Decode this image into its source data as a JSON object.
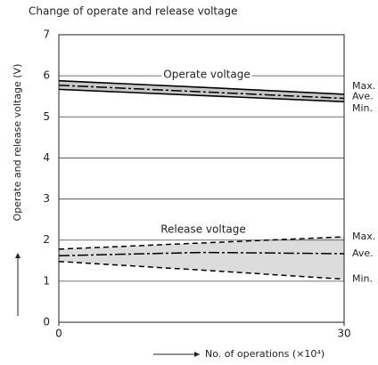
{
  "chart_data": {
    "type": "line",
    "title": "Change of operate and release voltage",
    "xlabel": "No. of operations (×10⁴)",
    "ylabel": "Operate and release voltage (V)",
    "annotations": [
      "Operate voltage",
      "Release voltage"
    ],
    "x": [
      0,
      15,
      30
    ],
    "series": [
      {
        "name": "Max.",
        "color": "#000000",
        "style": "solid",
        "values": [
          5.88,
          5.72,
          5.55
        ]
      },
      {
        "name": "Ave.",
        "color": "#000000",
        "style": "dashdot",
        "values": [
          5.77,
          5.61,
          5.45
        ]
      },
      {
        "name": "Min.",
        "color": "#000000",
        "style": "solid",
        "values": [
          5.67,
          5.52,
          5.37
        ]
      },
      {
        "name": "Max.",
        "color": "#000000",
        "style": "dashed",
        "values": [
          1.78,
          1.93,
          2.08
        ]
      },
      {
        "name": "Ave.",
        "color": "#000000",
        "style": "dashdot",
        "values": [
          1.62,
          1.7,
          1.67
        ]
      },
      {
        "name": "Min.",
        "color": "#000000",
        "style": "dashed",
        "values": [
          1.48,
          1.27,
          1.05
        ]
      }
    ],
    "bands": [
      {
        "series": [
          0,
          2
        ],
        "color": "#c8c8c8"
      },
      {
        "series": [
          3,
          5
        ],
        "color": "#dcdcdc"
      }
    ],
    "xlim": [
      0,
      30
    ],
    "xticks": [
      0,
      30
    ],
    "ylim": [
      0,
      7
    ],
    "yticks": [
      0,
      1,
      2,
      3,
      4,
      5,
      6,
      7
    ],
    "grid": true
  }
}
